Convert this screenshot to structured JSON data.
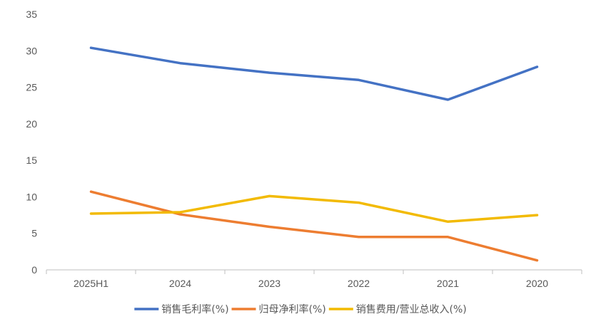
{
  "chart_data": {
    "type": "line",
    "title": "",
    "xlabel": "",
    "ylabel": "",
    "categories": [
      "2025H1",
      "2024",
      "2023",
      "2022",
      "2021",
      "2020"
    ],
    "ylim": [
      0,
      35
    ],
    "yticks": [
      0,
      5,
      10,
      15,
      20,
      25,
      30,
      35
    ],
    "grid": false,
    "legend_position": "bottom",
    "series": [
      {
        "name": "销售毛利率(%)",
        "color": "#4472C4",
        "values": [
          30.4,
          28.3,
          27.0,
          26.0,
          23.3,
          27.8
        ]
      },
      {
        "name": "归母净利率(%)",
        "color": "#ED7D31",
        "values": [
          10.7,
          7.6,
          5.9,
          4.5,
          4.5,
          1.3
        ]
      },
      {
        "name": "销售费用/营业总收入(%)",
        "color": "#F2BA02",
        "values": [
          7.7,
          7.9,
          10.1,
          9.2,
          6.6,
          7.5
        ]
      }
    ]
  }
}
